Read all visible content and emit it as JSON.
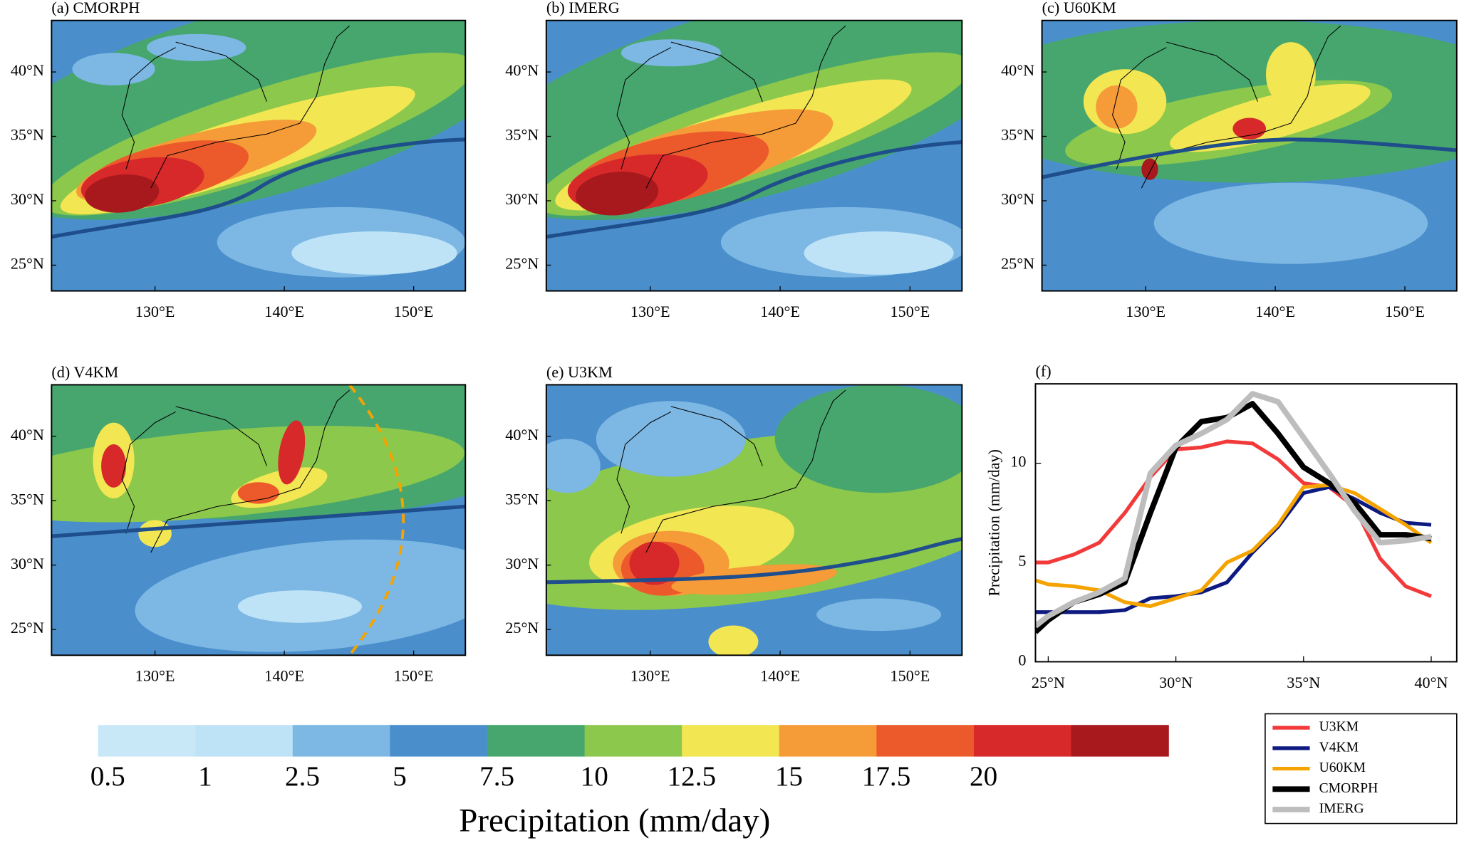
{
  "chart_data": [
    {
      "type": "map",
      "title": "(a) CMORPH",
      "xlim": [
        122,
        154
      ],
      "ylim": [
        23,
        44
      ],
      "xticks": [
        {
          "value": 130,
          "label": "130°E"
        },
        {
          "value": 140,
          "label": "140°E"
        },
        {
          "value": 150,
          "label": "150°E"
        }
      ],
      "yticks": [
        {
          "value": 25,
          "label": "25°N"
        },
        {
          "value": 30,
          "label": "30°N"
        },
        {
          "value": 35,
          "label": "35°N"
        },
        {
          "value": 40,
          "label": "40°N"
        }
      ]
    },
    {
      "type": "map",
      "title": "(b) IMERG",
      "xlim": [
        122,
        154
      ],
      "ylim": [
        23,
        44
      ],
      "xticks": [
        {
          "value": 130,
          "label": "130°E"
        },
        {
          "value": 140,
          "label": "140°E"
        },
        {
          "value": 150,
          "label": "150°E"
        }
      ],
      "yticks": [
        {
          "value": 25,
          "label": "25°N"
        },
        {
          "value": 30,
          "label": "30°N"
        },
        {
          "value": 35,
          "label": "35°N"
        },
        {
          "value": 40,
          "label": "40°N"
        }
      ]
    },
    {
      "type": "map",
      "title": "(c) U60KM",
      "xlim": [
        122,
        154
      ],
      "ylim": [
        23,
        44
      ],
      "xticks": [
        {
          "value": 130,
          "label": "130°E"
        },
        {
          "value": 140,
          "label": "140°E"
        },
        {
          "value": 150,
          "label": "150°E"
        }
      ],
      "yticks": [
        {
          "value": 25,
          "label": "25°N"
        },
        {
          "value": 30,
          "label": "30°N"
        },
        {
          "value": 35,
          "label": "35°N"
        },
        {
          "value": 40,
          "label": "40°N"
        }
      ]
    },
    {
      "type": "map",
      "title": "(d) V4KM",
      "xlim": [
        122,
        154
      ],
      "ylim": [
        23,
        44
      ],
      "xticks": [
        {
          "value": 130,
          "label": "130°E"
        },
        {
          "value": 140,
          "label": "140°E"
        },
        {
          "value": 150,
          "label": "150°E"
        }
      ],
      "yticks": [
        {
          "value": 25,
          "label": "25°N"
        },
        {
          "value": 30,
          "label": "30°N"
        },
        {
          "value": 35,
          "label": "35°N"
        },
        {
          "value": 40,
          "label": "40°N"
        }
      ]
    },
    {
      "type": "map",
      "title": "(e) U3KM",
      "xlim": [
        122,
        154
      ],
      "ylim": [
        23,
        44
      ],
      "xticks": [
        {
          "value": 130,
          "label": "130°E"
        },
        {
          "value": 140,
          "label": "140°E"
        },
        {
          "value": 150,
          "label": "150°E"
        }
      ],
      "yticks": [
        {
          "value": 25,
          "label": "25°N"
        },
        {
          "value": 30,
          "label": "30°N"
        },
        {
          "value": 35,
          "label": "35°N"
        },
        {
          "value": 40,
          "label": "40°N"
        }
      ]
    },
    {
      "type": "line",
      "title": "(f)",
      "y_label": "Precipitation (mm/day)",
      "x": [
        24.5,
        25,
        26,
        27,
        28,
        29,
        30,
        31,
        32,
        33,
        34,
        35,
        36,
        37,
        38,
        39,
        40
      ],
      "xlim": [
        24.5,
        41
      ],
      "ylim": [
        0,
        14
      ],
      "xticks": [
        {
          "value": 25,
          "label": "25°N"
        },
        {
          "value": 30,
          "label": "30°N"
        },
        {
          "value": 35,
          "label": "35°N"
        },
        {
          "value": 40,
          "label": "40°N"
        }
      ],
      "yticks": [
        0,
        5,
        10
      ],
      "legend": "lower right",
      "series": [
        {
          "name": "U3KM",
          "color": "#f23a3a",
          "width": 4,
          "values": [
            5.0,
            5.0,
            5.4,
            6.0,
            7.5,
            9.3,
            10.7,
            10.8,
            11.1,
            11.0,
            10.2,
            9.0,
            8.8,
            7.8,
            5.2,
            3.8,
            3.3
          ]
        },
        {
          "name": "V4KM",
          "color": "#0d1a80",
          "width": 4,
          "values": [
            2.5,
            2.5,
            2.5,
            2.5,
            2.6,
            3.2,
            3.3,
            3.5,
            4.0,
            5.5,
            6.8,
            8.5,
            8.8,
            8.2,
            7.5,
            7.0,
            6.9
          ]
        },
        {
          "name": "U60KM",
          "color": "#f5a300",
          "width": 4,
          "values": [
            4.1,
            3.9,
            3.8,
            3.6,
            3.0,
            2.8,
            3.2,
            3.6,
            5.0,
            5.6,
            6.9,
            8.8,
            8.9,
            8.5,
            7.7,
            6.9,
            6.0
          ]
        },
        {
          "name": "CMORPH",
          "color": "#000000",
          "width": 6,
          "values": [
            1.5,
            2.1,
            3.0,
            3.4,
            4.0,
            7.5,
            10.8,
            12.1,
            12.3,
            13.0,
            11.5,
            9.8,
            9.0,
            8.0,
            6.4,
            6.4,
            6.2
          ]
        },
        {
          "name": "IMERG",
          "color": "#bdbdbd",
          "width": 6,
          "values": [
            1.8,
            2.3,
            3.0,
            3.5,
            4.2,
            9.5,
            10.9,
            11.5,
            12.2,
            13.5,
            13.1,
            11.3,
            9.5,
            7.6,
            6.0,
            6.1,
            6.3
          ]
        }
      ]
    },
    {
      "type": "colorbar",
      "label": "Precipitation (mm/day)",
      "ticks": [
        0.5,
        1,
        2.5,
        5,
        7.5,
        10,
        12.5,
        15,
        17.5,
        20
      ],
      "colors": [
        "#bfe3f6",
        "#7db8e4",
        "#4a8fcc",
        "#47a66e",
        "#8cc84b",
        "#f2e653",
        "#f59b38",
        "#ec5a2b",
        "#d7282a",
        "#a8191e"
      ]
    }
  ]
}
